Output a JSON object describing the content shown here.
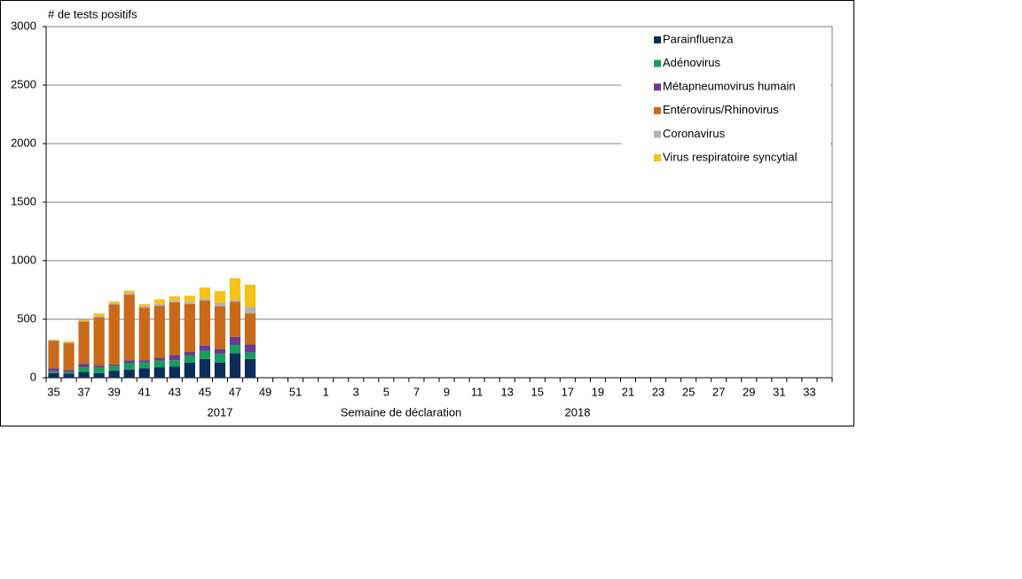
{
  "chart_data": {
    "type": "stacked_bar",
    "ylabel": "# de tests positifs",
    "xlabel": "Semaine de déclaration",
    "x_group_labels": [
      "2017",
      "2018"
    ],
    "categories": [
      "35",
      null,
      "37",
      null,
      "39",
      null,
      "41",
      null,
      "43",
      null,
      "45",
      null,
      "47",
      null,
      "49",
      null,
      "51",
      null,
      "1",
      null,
      "3",
      null,
      "5",
      null,
      "7",
      null,
      "9",
      null,
      "11",
      null,
      "13",
      null,
      "15",
      null,
      "17",
      null,
      "19",
      null,
      "21",
      null,
      "23",
      null,
      "25",
      null,
      "27",
      null,
      "29",
      null,
      "31",
      null,
      "33",
      null
    ],
    "ylim": [
      0,
      3000
    ],
    "yticks": [
      0,
      500,
      1000,
      1500,
      2000,
      2500,
      3000
    ],
    "grid": true,
    "legend": "upper right",
    "series": [
      {
        "name": "Parainfluenza",
        "color": "#0c2d5c",
        "values": [
          40,
          35,
          50,
          40,
          60,
          70,
          80,
          90,
          95,
          130,
          160,
          130,
          210,
          160,
          null,
          null,
          null,
          null,
          null,
          null,
          null,
          null,
          null,
          null,
          null,
          null,
          null,
          null,
          null,
          null,
          null,
          null,
          null,
          null,
          null,
          null,
          null,
          null,
          null,
          null,
          null,
          null,
          null,
          null,
          null,
          null,
          null,
          null,
          null,
          null,
          null,
          null
        ]
      },
      {
        "name": "Adénovirus",
        "color": "#14a05a",
        "values": [
          15,
          15,
          40,
          45,
          40,
          55,
          50,
          55,
          55,
          60,
          70,
          75,
          70,
          55,
          null,
          null,
          null,
          null,
          null,
          null,
          null,
          null,
          null,
          null,
          null,
          null,
          null,
          null,
          null,
          null,
          null,
          null,
          null,
          null,
          null,
          null,
          null,
          null,
          null,
          null,
          null,
          null,
          null,
          null,
          null,
          null,
          null,
          null,
          null,
          null,
          null,
          null
        ]
      },
      {
        "name": "Métapneumovirus humain",
        "color": "#6a3a94",
        "values": [
          25,
          15,
          30,
          20,
          15,
          25,
          20,
          25,
          45,
          30,
          45,
          40,
          70,
          70,
          null,
          null,
          null,
          null,
          null,
          null,
          null,
          null,
          null,
          null,
          null,
          null,
          null,
          null,
          null,
          null,
          null,
          null,
          null,
          null,
          null,
          null,
          null,
          null,
          null,
          null,
          null,
          null,
          null,
          null,
          null,
          null,
          null,
          null,
          null,
          null,
          null,
          null
        ]
      },
      {
        "name": "Entérovirus/Rhinovirus",
        "color": "#c96a1a",
        "values": [
          235,
          230,
          360,
          410,
          510,
          560,
          450,
          445,
          450,
          410,
          385,
          365,
          300,
          265,
          null,
          null,
          null,
          null,
          null,
          null,
          null,
          null,
          null,
          null,
          null,
          null,
          null,
          null,
          null,
          null,
          null,
          null,
          null,
          null,
          null,
          null,
          null,
          null,
          null,
          null,
          null,
          null,
          null,
          null,
          null,
          null,
          null,
          null,
          null,
          null,
          null,
          null
        ]
      },
      {
        "name": "Coronavirus",
        "color": "#b3b3b3",
        "values": [
          5,
          5,
          5,
          10,
          10,
          15,
          15,
          15,
          15,
          20,
          15,
          30,
          15,
          55,
          null,
          null,
          null,
          null,
          null,
          null,
          null,
          null,
          null,
          null,
          null,
          null,
          null,
          null,
          null,
          null,
          null,
          null,
          null,
          null,
          null,
          null,
          null,
          null,
          null,
          null,
          null,
          null,
          null,
          null,
          null,
          null,
          null,
          null,
          null,
          null,
          null,
          null
        ]
      },
      {
        "name": "Virus respiratoire syncytial",
        "color": "#f5c216",
        "values": [
          5,
          10,
          10,
          25,
          15,
          20,
          15,
          40,
          35,
          50,
          95,
          100,
          185,
          190,
          null,
          null,
          null,
          null,
          null,
          null,
          null,
          null,
          null,
          null,
          null,
          null,
          null,
          null,
          null,
          null,
          null,
          null,
          null,
          null,
          null,
          null,
          null,
          null,
          null,
          null,
          null,
          null,
          null,
          null,
          null,
          null,
          null,
          null,
          null,
          null,
          null,
          null
        ]
      }
    ]
  }
}
